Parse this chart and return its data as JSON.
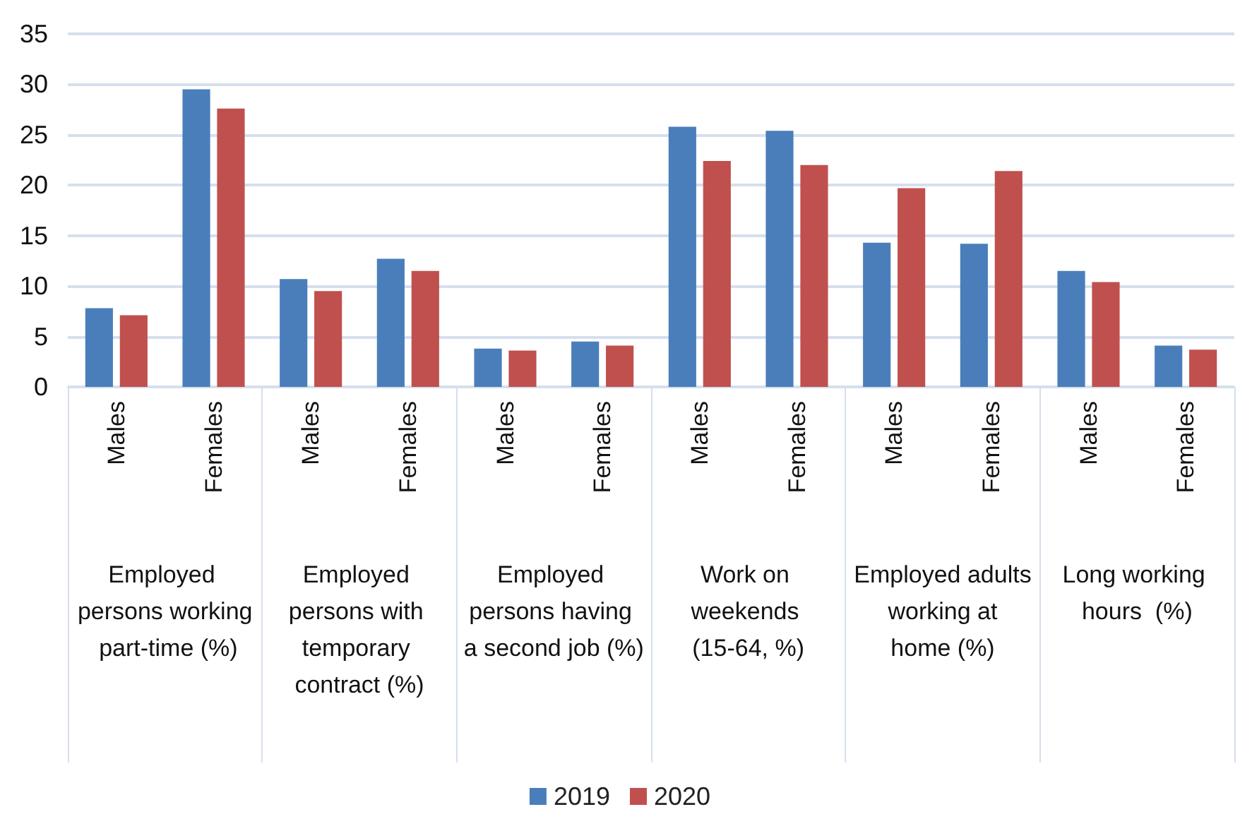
{
  "chart_data": {
    "type": "bar",
    "categories": [
      "Males",
      "Females",
      "Males",
      "Females",
      "Males",
      "Females",
      "Males",
      "Females",
      "Males",
      "Females",
      "Males",
      "Females"
    ],
    "annotations": [
      "Employed persons working part-time (%)",
      "Employed persons with temporary contract (%)",
      "Employed persons having a second job (%)",
      "Work on weekends (15-64, %)",
      "Employed adults working at home (%)",
      "Long working hours  (%)"
    ],
    "series": [
      {
        "name": "2019",
        "color": "#4a7ebb",
        "values": [
          7.8,
          29.5,
          10.7,
          12.7,
          3.8,
          4.5,
          25.8,
          25.4,
          14.3,
          14.2,
          11.5,
          4.1
        ]
      },
      {
        "name": "2020",
        "color": "#c0504d",
        "values": [
          7.1,
          27.6,
          9.5,
          11.5,
          3.6,
          4.1,
          22.4,
          22.0,
          19.7,
          21.4,
          10.4,
          3.7
        ]
      }
    ],
    "ylim": [
      0,
      35
    ],
    "yticks": [
      0,
      5,
      10,
      15,
      20,
      25,
      30,
      35
    ],
    "grid": "y",
    "legend": "bottom"
  }
}
